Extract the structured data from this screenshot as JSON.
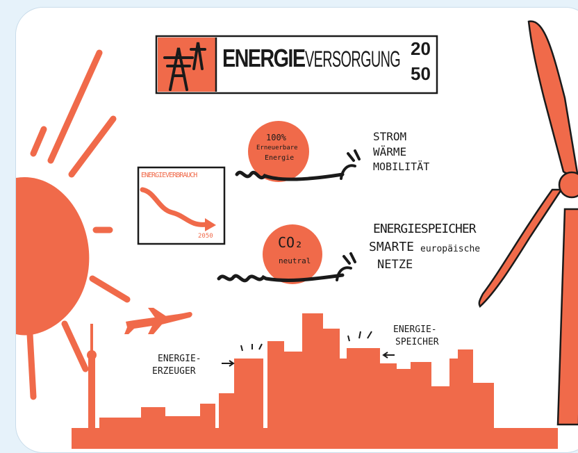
{
  "colors": {
    "accent": "#f06a4a",
    "ink": "#1a1a1a",
    "background": "#e6f2fa",
    "card": "#ffffff"
  },
  "title": {
    "bold": "ENERGIE",
    "light": "VERSORGUNG",
    "year_top": "20",
    "year_bottom": "50"
  },
  "chart_box": {
    "label": "ENERGIEVERBRAUCH",
    "year": "2050"
  },
  "bubble1": {
    "line1": "100%",
    "line2": "Erneuerbare",
    "line3": "Energie"
  },
  "list1": [
    "STROM",
    "WÄRME",
    "MOBILITÄT"
  ],
  "bubble2": {
    "main": "CO₂",
    "sub": "neutral"
  },
  "list2": {
    "line1": "ENERGIESPEICHER",
    "line2a": "SMARTE",
    "line2b": "europäische",
    "line3": "NETZE"
  },
  "label_erzeuger": {
    "line1": "ENERGIE-",
    "line2": "ERZEUGER"
  },
  "label_speicher": {
    "line1": "ENERGIE-",
    "line2": "SPEICHER"
  },
  "icons": [
    "sun-icon",
    "wind-turbine-icon",
    "power-pylon-icon",
    "plug-icon",
    "airplane-icon",
    "tv-tower-icon",
    "city-skyline-icon"
  ]
}
